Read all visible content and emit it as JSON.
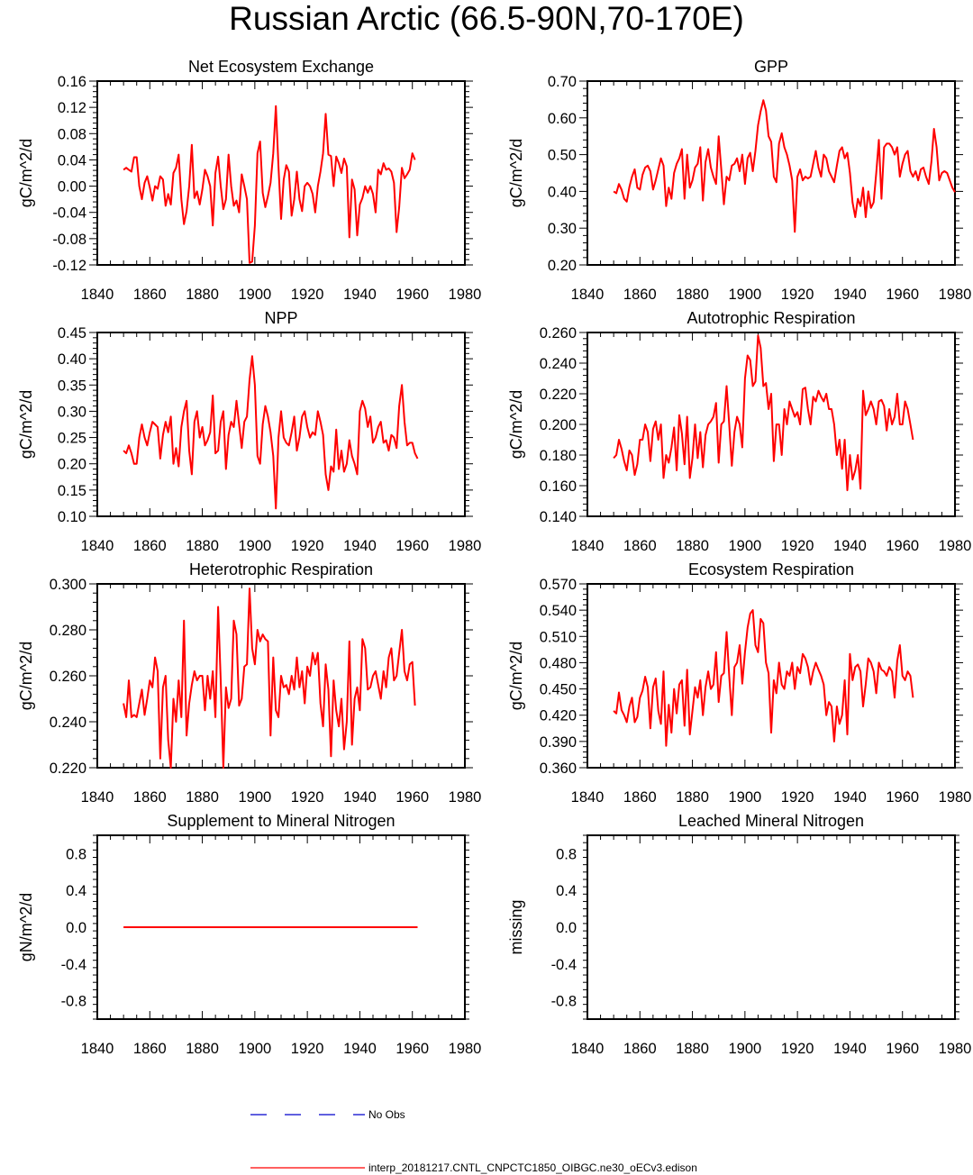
{
  "figure": {
    "title": "Russian Arctic (66.5-90N,70-170E)",
    "legend": [
      {
        "label": "No Obs",
        "style": "dashed",
        "color": "#0000cc"
      },
      {
        "label": "interp_20181217.CNTL_CNPCTC1850_OIBGC.ne30_oECv3.edison",
        "style": "solid",
        "color": "#ff0000"
      }
    ]
  },
  "chart_data": [
    {
      "type": "line",
      "title": "Net Ecosystem Exchange",
      "ylabel": "gC/m^2/d",
      "xlim": [
        1840,
        1980
      ],
      "ylim": [
        -0.12,
        0.16
      ],
      "xticks": [
        "1840",
        "1860",
        "1880",
        "1900",
        "1920",
        "1940",
        "1960",
        "1980"
      ],
      "yticks": [
        "-0.12",
        "-0.08",
        "-0.04",
        "0.00",
        "0.04",
        "0.08",
        "0.12",
        "0.16"
      ],
      "series": [
        {
          "name": "model",
          "color": "#ff0000",
          "x_start": 1850,
          "values": [
            0.025,
            0.028,
            0.025,
            0.022,
            0.044,
            0.044,
            0.0,
            -0.02,
            0.005,
            0.015,
            -0.002,
            -0.022,
            0.0,
            -0.004,
            0.015,
            0.01,
            -0.03,
            -0.012,
            -0.028,
            0.02,
            0.028,
            0.048,
            -0.02,
            -0.058,
            -0.038,
            0.0,
            0.063,
            -0.018,
            -0.008,
            -0.028,
            -0.005,
            0.025,
            0.015,
            0.0,
            -0.06,
            0.02,
            0.045,
            0.0,
            -0.035,
            -0.02,
            0.048,
            0.0,
            -0.03,
            -0.022,
            -0.04,
            0.018,
            0.0,
            -0.02,
            -0.117,
            -0.115,
            -0.06,
            0.05,
            0.068,
            -0.01,
            -0.032,
            -0.015,
            0.005,
            0.05,
            0.122,
            0.03,
            -0.05,
            0.01,
            0.032,
            0.022,
            -0.045,
            -0.02,
            0.022,
            -0.02,
            -0.038,
            0.0,
            0.005,
            0.0,
            -0.012,
            -0.04,
            0.0,
            0.022,
            0.05,
            0.11,
            0.048,
            0.046,
            0.0,
            0.045,
            0.035,
            0.02,
            0.042,
            0.03,
            -0.078,
            0.01,
            -0.005,
            -0.075,
            -0.028,
            -0.018,
            0.0,
            -0.01,
            0.0,
            -0.012,
            -0.04,
            0.025,
            0.018,
            0.035,
            0.025,
            0.027,
            0.022,
            0.005,
            -0.07,
            -0.032,
            0.028,
            0.012,
            0.018,
            0.025,
            0.05,
            0.04
          ]
        }
      ]
    },
    {
      "type": "line",
      "title": "GPP",
      "ylabel": "gC/m^2/d",
      "xlim": [
        1840,
        1980
      ],
      "ylim": [
        0.2,
        0.7
      ],
      "xticks": [
        "1840",
        "1860",
        "1880",
        "1900",
        "1920",
        "1940",
        "1960",
        "1980"
      ],
      "yticks": [
        "0.20",
        "0.30",
        "0.40",
        "0.50",
        "0.60",
        "0.70"
      ],
      "series": [
        {
          "name": "model",
          "color": "#ff0000",
          "x_start": 1850,
          "values": [
            0.4,
            0.395,
            0.42,
            0.405,
            0.38,
            0.372,
            0.412,
            0.44,
            0.46,
            0.41,
            0.405,
            0.445,
            0.465,
            0.47,
            0.455,
            0.405,
            0.43,
            0.46,
            0.49,
            0.47,
            0.36,
            0.41,
            0.38,
            0.45,
            0.475,
            0.49,
            0.515,
            0.38,
            0.5,
            0.41,
            0.43,
            0.465,
            0.475,
            0.52,
            0.375,
            0.48,
            0.515,
            0.465,
            0.44,
            0.42,
            0.55,
            0.46,
            0.365,
            0.44,
            0.43,
            0.47,
            0.475,
            0.49,
            0.455,
            0.5,
            0.42,
            0.49,
            0.505,
            0.455,
            0.51,
            0.58,
            0.618,
            0.648,
            0.62,
            0.55,
            0.535,
            0.44,
            0.425,
            0.53,
            0.558,
            0.52,
            0.5,
            0.47,
            0.43,
            0.29,
            0.44,
            0.46,
            0.43,
            0.44,
            0.435,
            0.44,
            0.475,
            0.51,
            0.465,
            0.44,
            0.5,
            0.49,
            0.455,
            0.44,
            0.425,
            0.47,
            0.51,
            0.52,
            0.49,
            0.505,
            0.45,
            0.37,
            0.33,
            0.38,
            0.36,
            0.41,
            0.33,
            0.4,
            0.355,
            0.37,
            0.45,
            0.54,
            0.38,
            0.52,
            0.53,
            0.53,
            0.52,
            0.5,
            0.52,
            0.44,
            0.475,
            0.5,
            0.51,
            0.455,
            0.44,
            0.455,
            0.43,
            0.46,
            0.465,
            0.44,
            0.42,
            0.48,
            0.57,
            0.52,
            0.43,
            0.45,
            0.455,
            0.45,
            0.43,
            0.41,
            0.398
          ]
        }
      ]
    },
    {
      "type": "line",
      "title": "NPP",
      "ylabel": "gC/m^2/d",
      "xlim": [
        1840,
        1980
      ],
      "ylim": [
        0.1,
        0.45
      ],
      "xticks": [
        "1840",
        "1860",
        "1880",
        "1900",
        "1920",
        "1940",
        "1960",
        "1980"
      ],
      "yticks": [
        "0.10",
        "0.15",
        "0.20",
        "0.25",
        "0.30",
        "0.35",
        "0.40",
        "0.45"
      ],
      "series": [
        {
          "name": "model",
          "color": "#ff0000",
          "x_start": 1850,
          "values": [
            0.225,
            0.22,
            0.235,
            0.22,
            0.2,
            0.2,
            0.25,
            0.275,
            0.25,
            0.235,
            0.26,
            0.28,
            0.275,
            0.27,
            0.21,
            0.255,
            0.28,
            0.26,
            0.29,
            0.2,
            0.23,
            0.195,
            0.27,
            0.3,
            0.32,
            0.225,
            0.18,
            0.28,
            0.3,
            0.25,
            0.27,
            0.235,
            0.245,
            0.26,
            0.33,
            0.22,
            0.225,
            0.28,
            0.3,
            0.19,
            0.255,
            0.28,
            0.27,
            0.32,
            0.275,
            0.23,
            0.28,
            0.29,
            0.36,
            0.405,
            0.35,
            0.215,
            0.2,
            0.275,
            0.31,
            0.29,
            0.26,
            0.215,
            0.115,
            0.25,
            0.3,
            0.25,
            0.24,
            0.235,
            0.26,
            0.29,
            0.225,
            0.25,
            0.29,
            0.3,
            0.27,
            0.25,
            0.26,
            0.255,
            0.3,
            0.28,
            0.255,
            0.18,
            0.15,
            0.195,
            0.185,
            0.265,
            0.19,
            0.225,
            0.185,
            0.2,
            0.245,
            0.215,
            0.2,
            0.18,
            0.3,
            0.32,
            0.305,
            0.27,
            0.29,
            0.24,
            0.25,
            0.27,
            0.28,
            0.24,
            0.245,
            0.225,
            0.255,
            0.25,
            0.23,
            0.31,
            0.35,
            0.28,
            0.235,
            0.24,
            0.24,
            0.22,
            0.21
          ]
        }
      ]
    },
    {
      "type": "line",
      "title": "Autotrophic Respiration",
      "ylabel": "gC/m^2/d",
      "xlim": [
        1840,
        1980
      ],
      "ylim": [
        0.14,
        0.26
      ],
      "xticks": [
        "1840",
        "1860",
        "1880",
        "1900",
        "1920",
        "1940",
        "1960",
        "1980"
      ],
      "yticks": [
        "0.140",
        "0.160",
        "0.180",
        "0.200",
        "0.220",
        "0.240",
        "0.260"
      ],
      "series": [
        {
          "name": "model",
          "color": "#ff0000",
          "x_start": 1850,
          "values": [
            0.178,
            0.18,
            0.19,
            0.184,
            0.176,
            0.17,
            0.183,
            0.18,
            0.167,
            0.174,
            0.19,
            0.19,
            0.2,
            0.195,
            0.176,
            0.197,
            0.202,
            0.19,
            0.2,
            0.165,
            0.18,
            0.175,
            0.185,
            0.198,
            0.17,
            0.206,
            0.194,
            0.174,
            0.205,
            0.165,
            0.178,
            0.2,
            0.178,
            0.195,
            0.172,
            0.193,
            0.2,
            0.202,
            0.205,
            0.214,
            0.175,
            0.2,
            0.202,
            0.225,
            0.2,
            0.173,
            0.195,
            0.205,
            0.2,
            0.185,
            0.23,
            0.245,
            0.242,
            0.225,
            0.228,
            0.258,
            0.25,
            0.225,
            0.227,
            0.21,
            0.22,
            0.176,
            0.2,
            0.2,
            0.18,
            0.21,
            0.2,
            0.215,
            0.21,
            0.205,
            0.208,
            0.2,
            0.223,
            0.224,
            0.21,
            0.2,
            0.218,
            0.215,
            0.222,
            0.218,
            0.215,
            0.22,
            0.21,
            0.21,
            0.2,
            0.18,
            0.19,
            0.171,
            0.19,
            0.157,
            0.18,
            0.164,
            0.17,
            0.18,
            0.158,
            0.222,
            0.206,
            0.21,
            0.215,
            0.21,
            0.2,
            0.215,
            0.216,
            0.212,
            0.196,
            0.21,
            0.2,
            0.205,
            0.22,
            0.2,
            0.2,
            0.215,
            0.21,
            0.2,
            0.19
          ]
        }
      ]
    },
    {
      "type": "line",
      "title": "Heterotrophic Respiration",
      "ylabel": "gC/m^2/d",
      "xlim": [
        1840,
        1980
      ],
      "ylim": [
        0.22,
        0.3
      ],
      "xticks": [
        "1840",
        "1860",
        "1880",
        "1900",
        "1920",
        "1940",
        "1960",
        "1980"
      ],
      "yticks": [
        "0.220",
        "0.240",
        "0.260",
        "0.280",
        "0.300"
      ],
      "series": [
        {
          "name": "model",
          "color": "#ff0000",
          "x_start": 1850,
          "values": [
            0.248,
            0.242,
            0.258,
            0.242,
            0.243,
            0.242,
            0.248,
            0.254,
            0.243,
            0.25,
            0.258,
            0.255,
            0.268,
            0.262,
            0.224,
            0.255,
            0.26,
            0.232,
            0.22,
            0.25,
            0.24,
            0.258,
            0.242,
            0.284,
            0.234,
            0.248,
            0.256,
            0.262,
            0.258,
            0.26,
            0.26,
            0.245,
            0.26,
            0.25,
            0.262,
            0.242,
            0.29,
            0.258,
            0.22,
            0.255,
            0.246,
            0.25,
            0.284,
            0.278,
            0.247,
            0.25,
            0.264,
            0.265,
            0.298,
            0.272,
            0.265,
            0.28,
            0.275,
            0.278,
            0.276,
            0.275,
            0.234,
            0.268,
            0.245,
            0.242,
            0.26,
            0.255,
            0.256,
            0.252,
            0.26,
            0.254,
            0.268,
            0.255,
            0.262,
            0.248,
            0.264,
            0.26,
            0.27,
            0.265,
            0.27,
            0.248,
            0.238,
            0.265,
            0.254,
            0.225,
            0.258,
            0.245,
            0.238,
            0.25,
            0.228,
            0.24,
            0.275,
            0.23,
            0.25,
            0.255,
            0.245,
            0.276,
            0.272,
            0.254,
            0.255,
            0.26,
            0.262,
            0.256,
            0.25,
            0.262,
            0.255,
            0.268,
            0.272,
            0.258,
            0.26,
            0.27,
            0.28,
            0.262,
            0.258,
            0.265,
            0.266,
            0.247
          ]
        }
      ]
    },
    {
      "type": "line",
      "title": "Ecosystem Respiration",
      "ylabel": "gC/m^2/d",
      "xlim": [
        1840,
        1980
      ],
      "ylim": [
        0.36,
        0.57
      ],
      "xticks": [
        "1840",
        "1860",
        "1880",
        "1900",
        "1920",
        "1940",
        "1960",
        "1980"
      ],
      "yticks": [
        "0.360",
        "0.390",
        "0.420",
        "0.450",
        "0.480",
        "0.510",
        "0.540",
        "0.570"
      ],
      "series": [
        {
          "name": "model",
          "color": "#ff0000",
          "x_start": 1850,
          "values": [
            0.425,
            0.422,
            0.446,
            0.426,
            0.42,
            0.412,
            0.43,
            0.44,
            0.412,
            0.418,
            0.44,
            0.448,
            0.464,
            0.452,
            0.405,
            0.452,
            0.462,
            0.425,
            0.41,
            0.47,
            0.385,
            0.432,
            0.4,
            0.45,
            0.422,
            0.455,
            0.46,
            0.408,
            0.472,
            0.398,
            0.425,
            0.452,
            0.44,
            0.46,
            0.42,
            0.452,
            0.47,
            0.45,
            0.455,
            0.492,
            0.435,
            0.465,
            0.468,
            0.515,
            0.465,
            0.42,
            0.475,
            0.48,
            0.5,
            0.456,
            0.492,
            0.52,
            0.536,
            0.54,
            0.5,
            0.492,
            0.53,
            0.525,
            0.48,
            0.468,
            0.4,
            0.46,
            0.445,
            0.48,
            0.455,
            0.45,
            0.47,
            0.465,
            0.48,
            0.45,
            0.475,
            0.468,
            0.49,
            0.485,
            0.475,
            0.455,
            0.47,
            0.48,
            0.472,
            0.465,
            0.455,
            0.42,
            0.435,
            0.43,
            0.39,
            0.43,
            0.41,
            0.42,
            0.46,
            0.398,
            0.49,
            0.46,
            0.475,
            0.478,
            0.47,
            0.43,
            0.455,
            0.485,
            0.48,
            0.47,
            0.445,
            0.48,
            0.472,
            0.47,
            0.465,
            0.475,
            0.47,
            0.44,
            0.482,
            0.5,
            0.465,
            0.46,
            0.47,
            0.465,
            0.44
          ]
        }
      ]
    },
    {
      "type": "line",
      "title": "Supplement to Mineral Nitrogen",
      "ylabel": "gN/m^2/d",
      "xlim": [
        1840,
        1980
      ],
      "ylim": [
        -1.0,
        1.0
      ],
      "xticks": [
        "1840",
        "1860",
        "1880",
        "1900",
        "1920",
        "1940",
        "1960",
        "1980"
      ],
      "yticks": [
        "-0.8",
        "-0.4",
        "0.0",
        "0.4",
        "0.8"
      ],
      "series": [
        {
          "name": "model",
          "color": "#ff0000",
          "x_start": 1850,
          "x_end": 1962,
          "constant": 0.0
        }
      ]
    },
    {
      "type": "line",
      "title": "Leached Mineral Nitrogen",
      "ylabel": "missing",
      "xlim": [
        1840,
        1980
      ],
      "ylim": [
        -1.0,
        1.0
      ],
      "xticks": [
        "1840",
        "1860",
        "1880",
        "1900",
        "1920",
        "1940",
        "1960",
        "1980"
      ],
      "yticks": [
        "-0.8",
        "-0.4",
        "0.0",
        "0.4",
        "0.8"
      ],
      "series": []
    }
  ]
}
